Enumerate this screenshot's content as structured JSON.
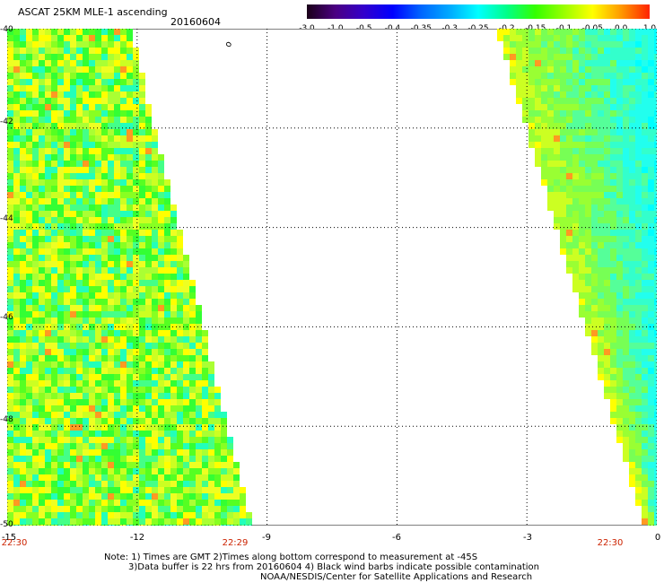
{
  "header": {
    "title": "ASCAT 25KM MLE-1 ascending",
    "date": "20160604"
  },
  "colorbar": {
    "labels": [
      "-3.0",
      "-1.0",
      "-0.5",
      "-0.4",
      "-0.35",
      "-0.3",
      "-0.25",
      "-0.2",
      "-0.15",
      "-0.1",
      "-0.05",
      "0.0",
      "1.0"
    ],
    "colors": [
      "#1a0018",
      "#4b0082",
      "#3300cc",
      "#0000ff",
      "#0066ff",
      "#00aaff",
      "#00ffff",
      "#00ff88",
      "#33ff00",
      "#99ff00",
      "#ffff00",
      "#ff9900",
      "#ff2200"
    ]
  },
  "map": {
    "lat_labels": [
      "-40",
      "-42",
      "-44",
      "-46",
      "-48",
      "-50"
    ],
    "lon_labels": [
      "-15",
      "-12",
      "-9",
      "-6",
      "-3",
      "0"
    ],
    "time_labels": [
      "22:30",
      "22:29",
      "22:30"
    ],
    "extent": {
      "lon": [
        -15,
        0
      ],
      "lat": [
        -50,
        -40
      ]
    },
    "swaths": [
      {
        "name": "west-swath",
        "east_edge_top_lon": -12.2,
        "east_edge_bottom_lon": -9.4
      },
      {
        "name": "east-swath",
        "west_edge_top_lon": -3.6,
        "west_edge_bottom_lon": -0.2
      }
    ]
  },
  "notes": {
    "line1": "Note: 1) Times are GMT 2)Times along bottom correspond to measurement at -45S",
    "line2": "3)Data buffer is 22 hrs from 20160604 4) Black wind barbs indicate possible contamination",
    "line3": "NOAA/NESDIS/Center for Satellite Applications and Research"
  }
}
